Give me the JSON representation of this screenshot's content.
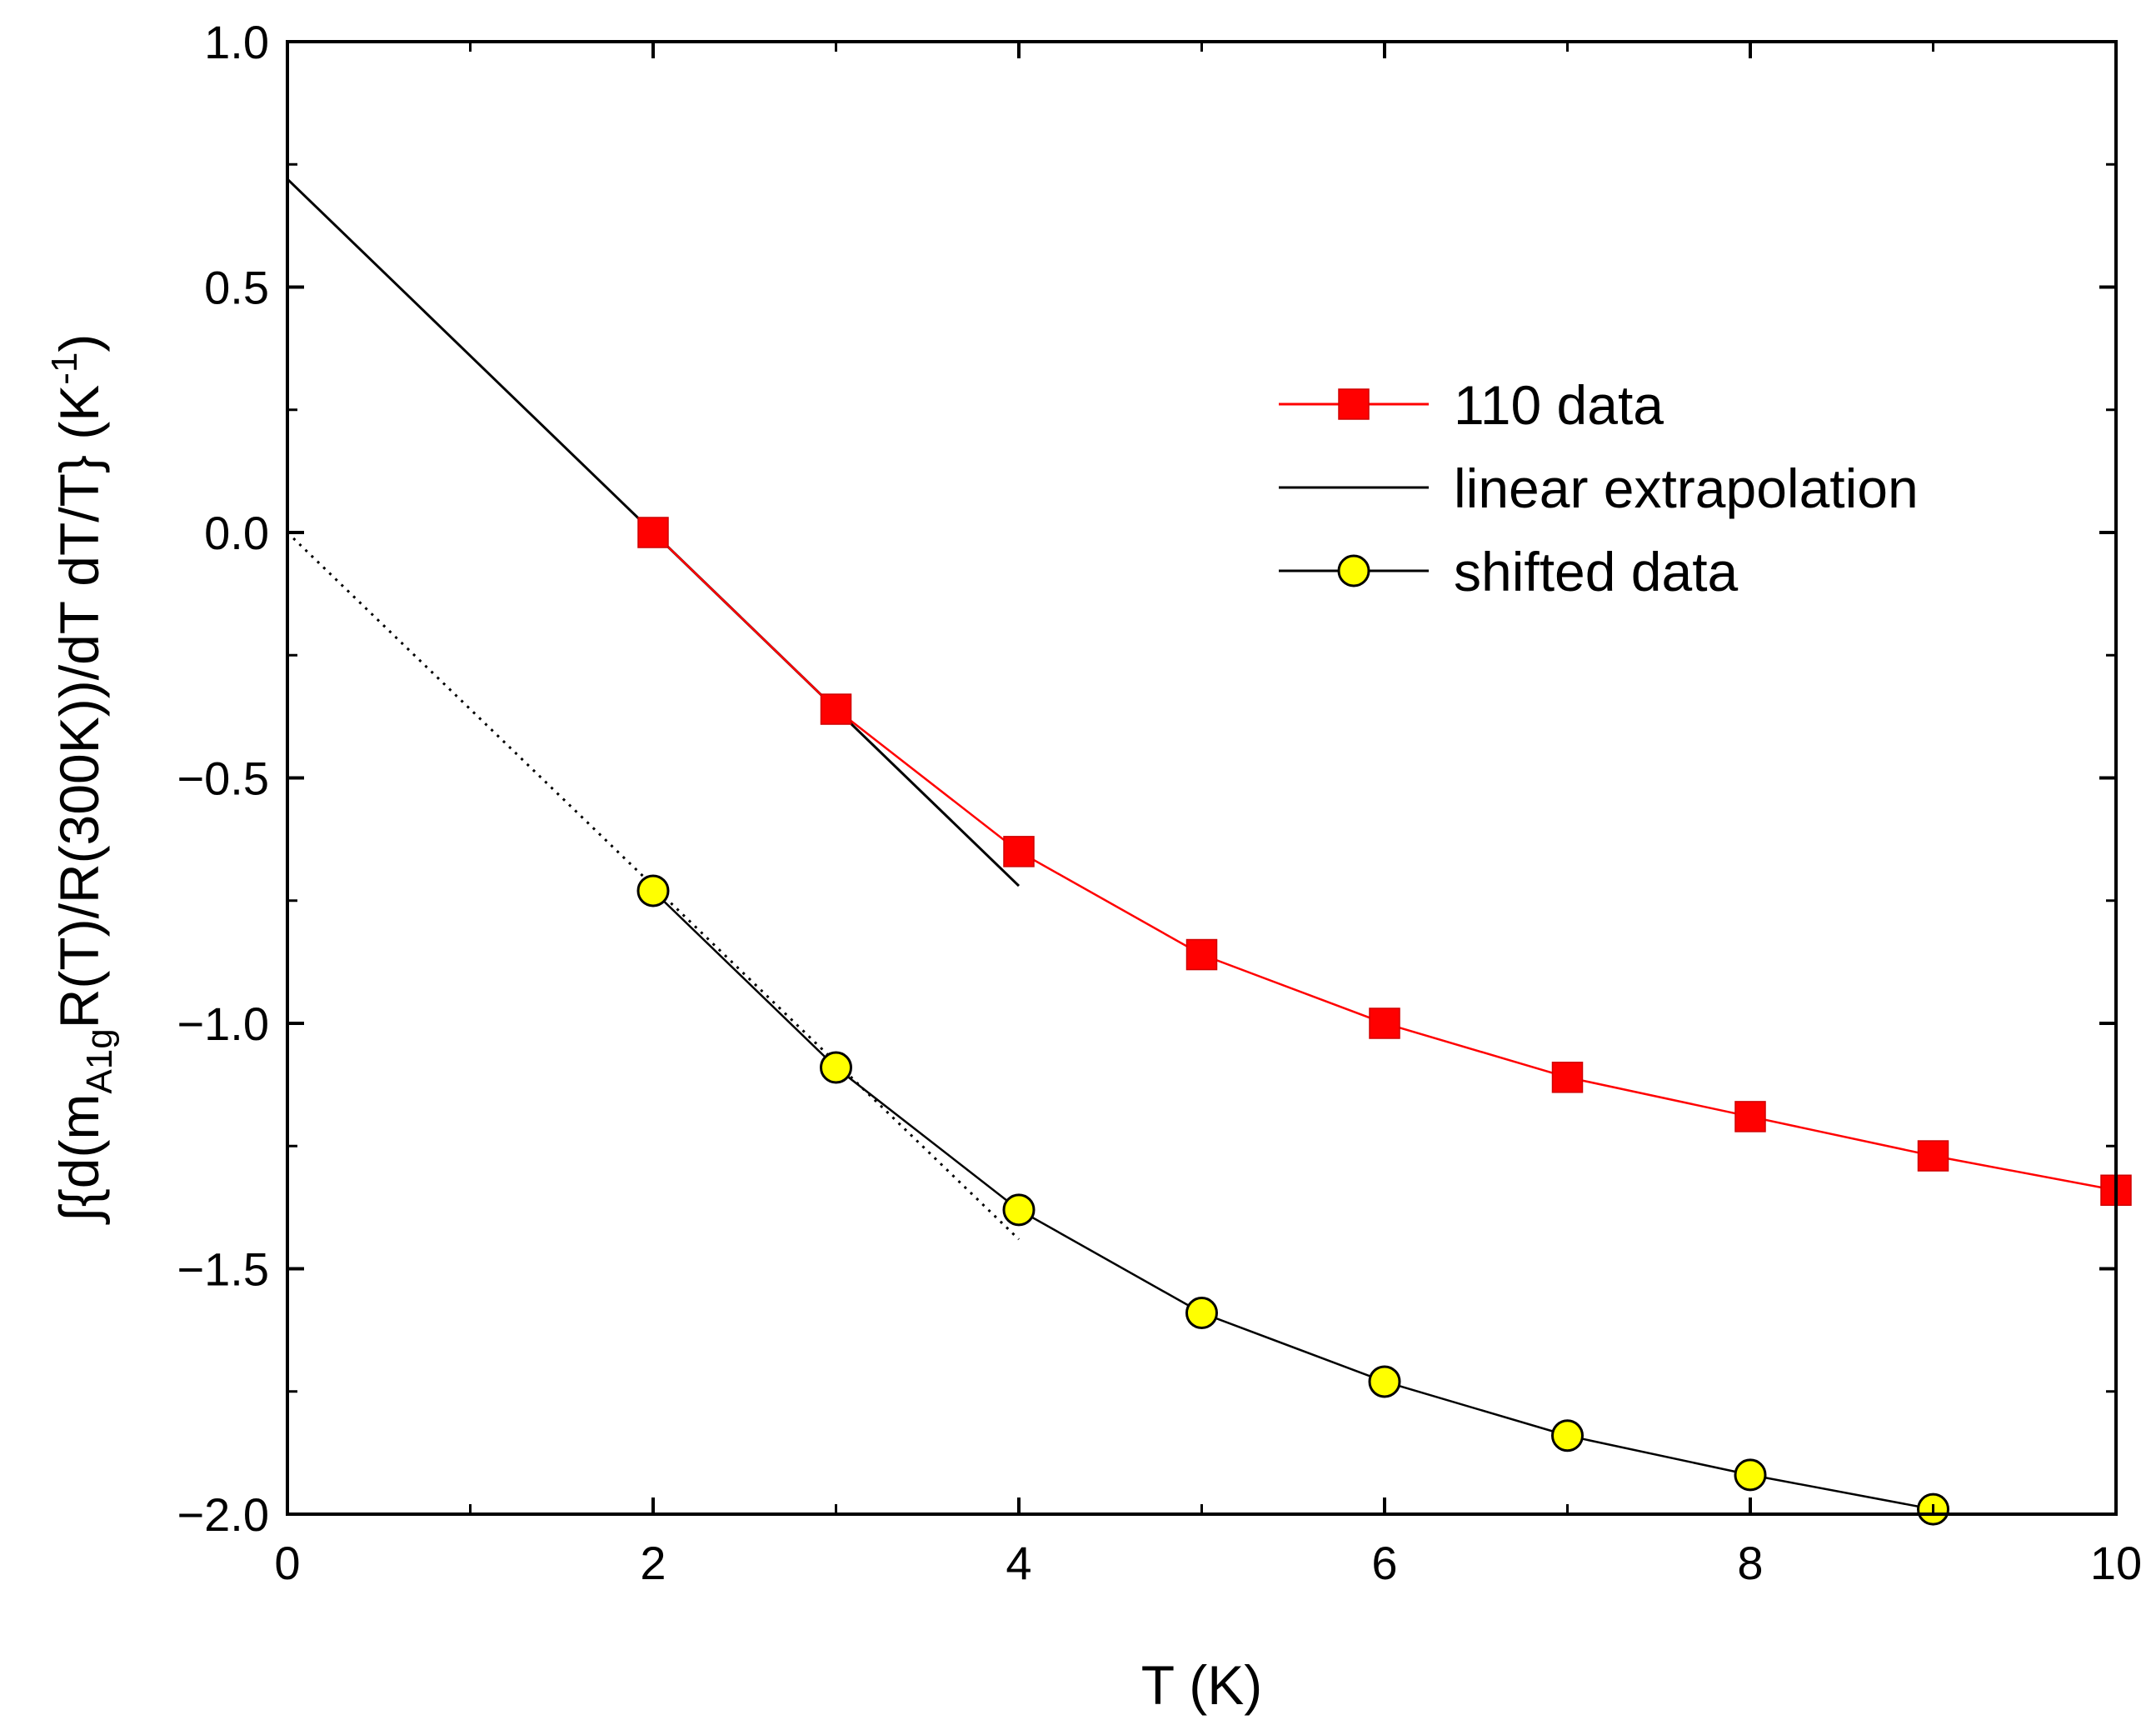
{
  "chart_data": {
    "type": "line",
    "title": "",
    "xlabel": "T (K)",
    "ylabel_parts": {
      "integral": "∫",
      "prefix": "{d(m",
      "subscript": "A1g",
      "middle": "R(T)/R(300K))/dT dT/T}  (K",
      "superscript": "-1",
      "suffix": ")"
    },
    "xlim": [
      0,
      10
    ],
    "ylim": [
      -2.0,
      1.0
    ],
    "xticks": [
      0,
      2,
      4,
      6,
      8,
      10
    ],
    "xtick_labels": [
      "0",
      "2",
      "4",
      "6",
      "8",
      "10"
    ],
    "yticks": [
      1.0,
      0.5,
      0.0,
      -0.5,
      -1.0,
      -1.5,
      -2.0
    ],
    "ytick_labels": [
      "1.0",
      "0.5",
      "0.0",
      "−0.5",
      "−1.0",
      "−1.5",
      "−2.0"
    ],
    "legend_position": "upper-right",
    "series": [
      {
        "name": "110 data",
        "color": "#ff0000",
        "marker": "square",
        "x": [
          2,
          3,
          4,
          5,
          6,
          7,
          8,
          9,
          10
        ],
        "y": [
          0.0,
          -0.36,
          -0.65,
          -0.86,
          -1.0,
          -1.11,
          -1.19,
          -1.27,
          -1.34
        ]
      },
      {
        "name": "linear extrapolation",
        "color": "#000000",
        "marker": "none",
        "x": [
          0,
          4
        ],
        "y": [
          0.72,
          -0.72
        ]
      },
      {
        "name": "shifted data",
        "color": "#000000",
        "marker_fill": "#ffff00",
        "marker": "circle",
        "x": [
          2,
          3,
          4,
          5,
          6,
          7,
          8,
          9
        ],
        "y": [
          -0.73,
          -1.09,
          -1.38,
          -1.59,
          -1.73,
          -1.84,
          -1.92,
          -1.99
        ]
      },
      {
        "name": "dotted extrapolation",
        "color": "#000000",
        "marker": "none",
        "style": "dotted",
        "in_legend": false,
        "x": [
          0,
          4
        ],
        "y": [
          0.0,
          -1.44
        ]
      }
    ]
  }
}
